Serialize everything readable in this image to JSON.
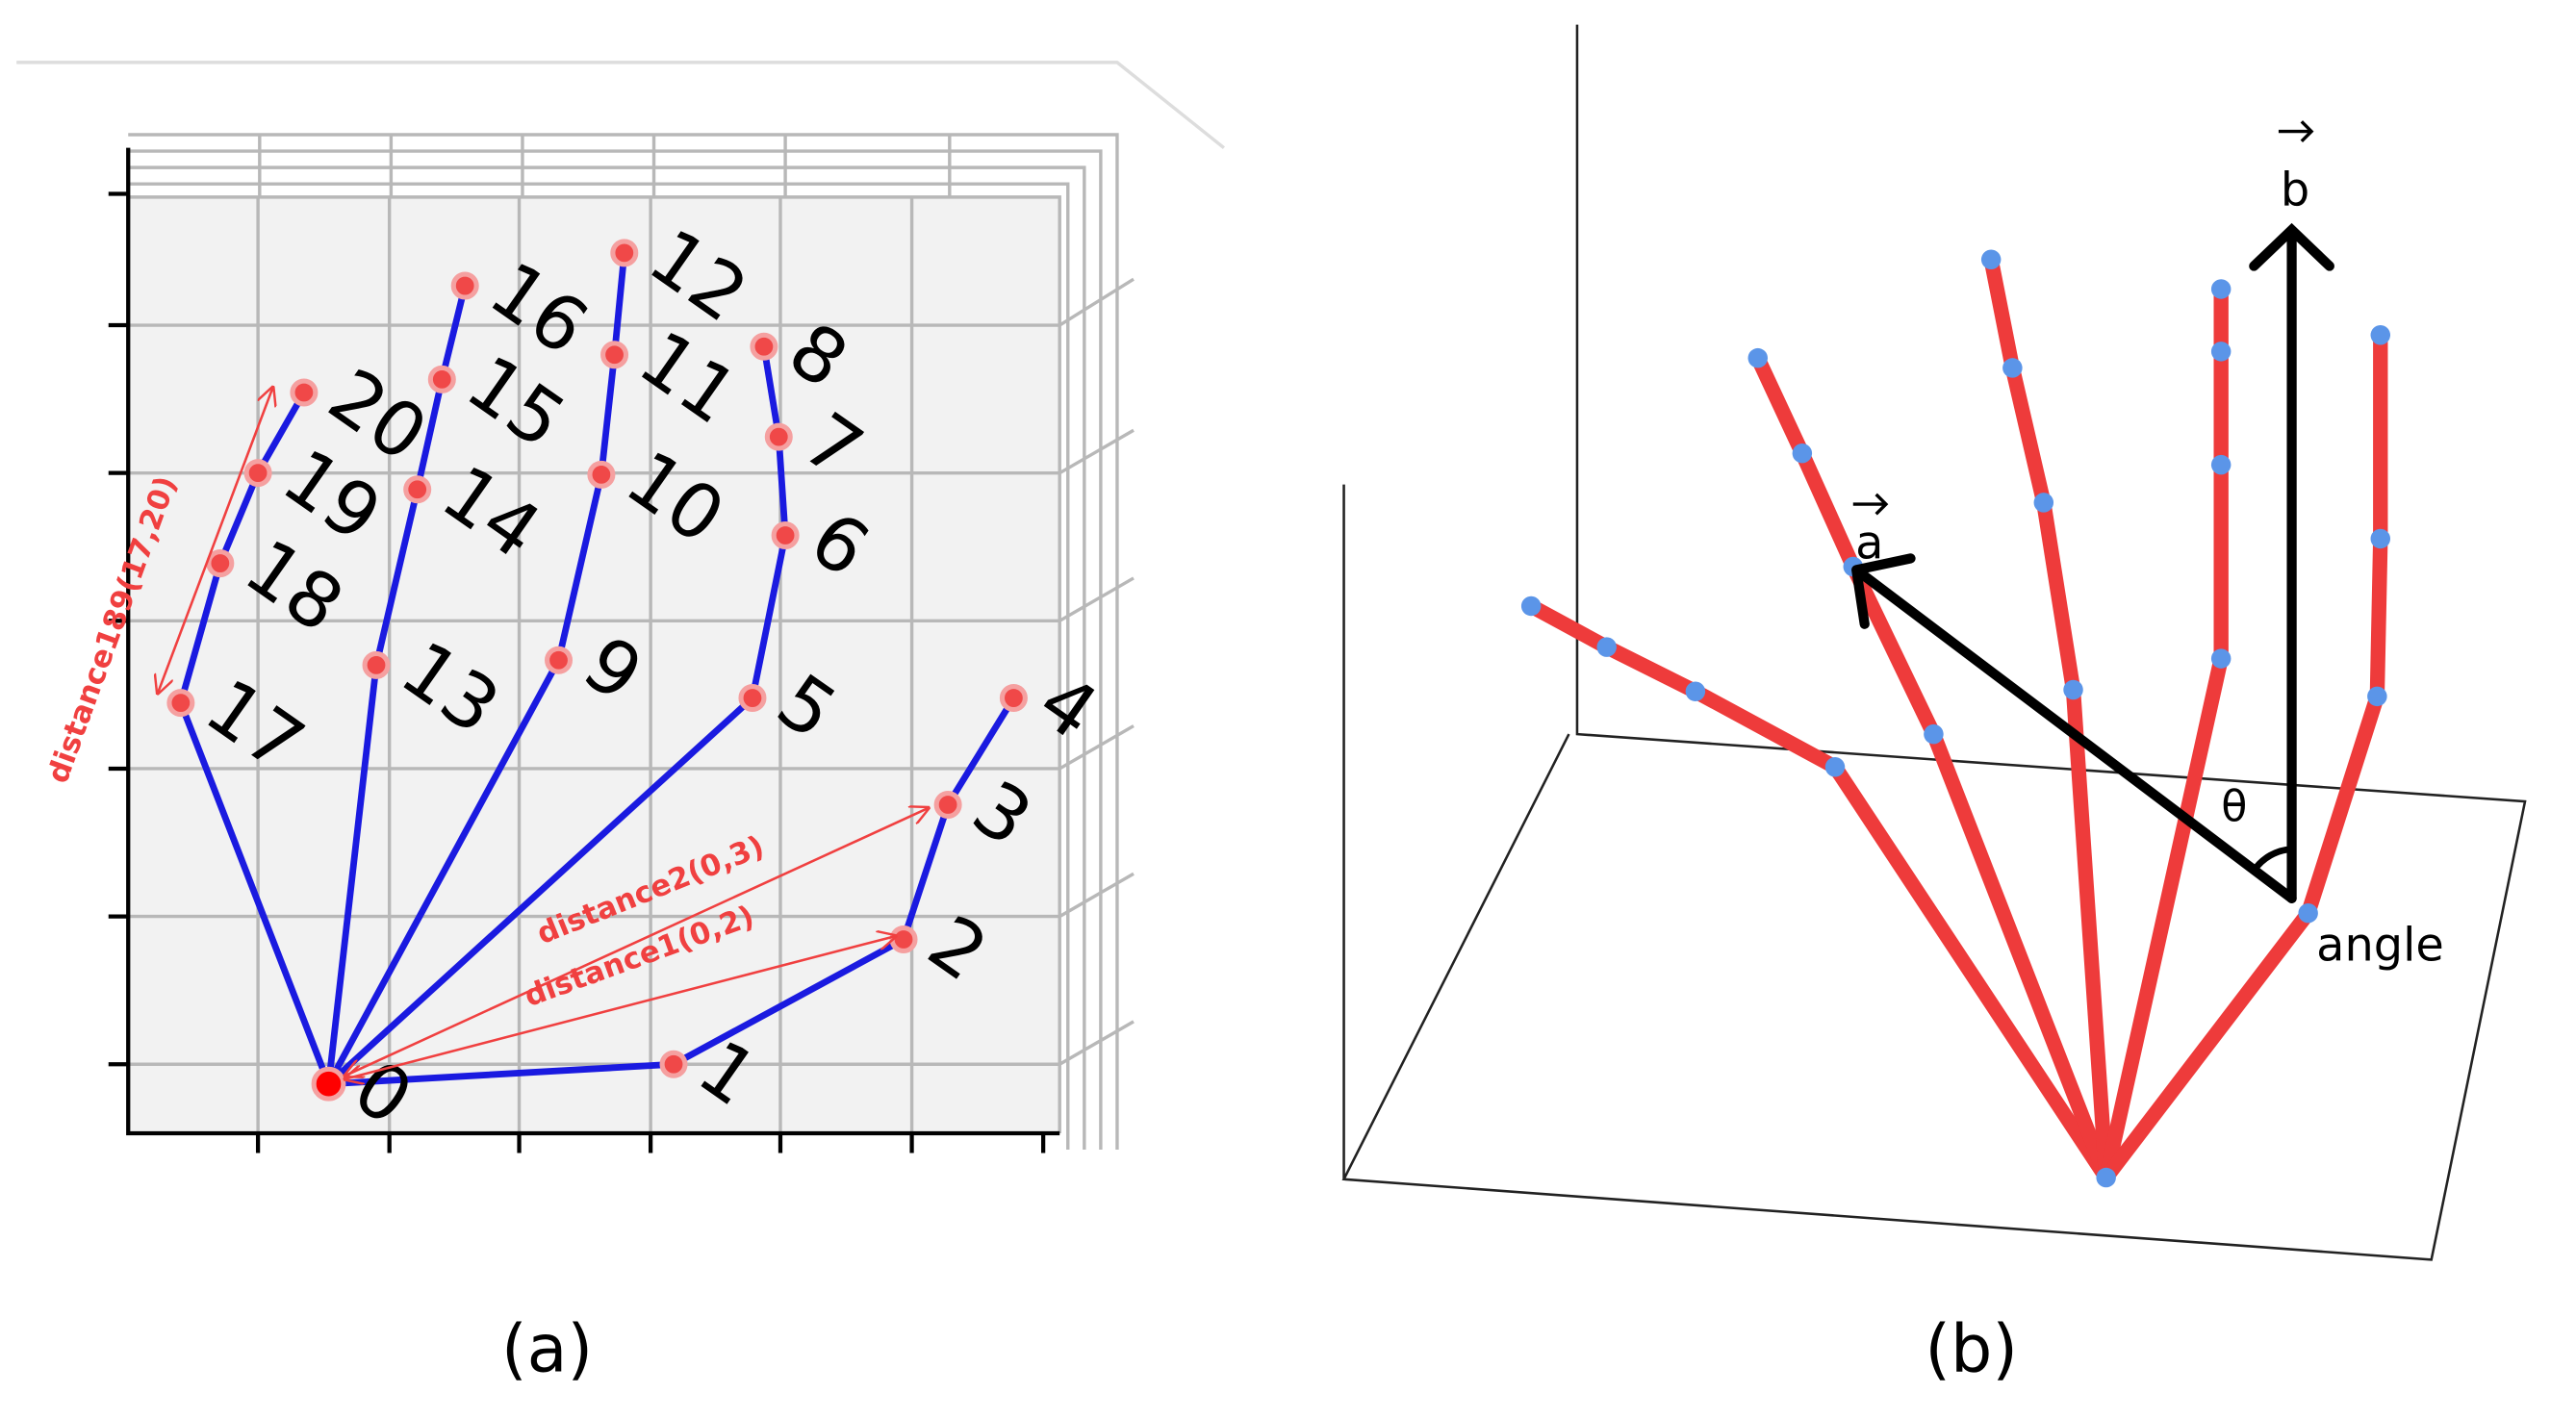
{
  "panel_a": {
    "landmarks": [
      "0",
      "1",
      "2",
      "3",
      "4",
      "5",
      "6",
      "7",
      "8",
      "9",
      "10",
      "11",
      "12",
      "13",
      "14",
      "15",
      "16",
      "17",
      "18",
      "19",
      "20"
    ],
    "distance_labels": [
      "distance1(0,2)",
      "distance2(0,3)",
      "distance189(17,20)"
    ],
    "caption": "(a)"
  },
  "panel_b": {
    "vector_labels": [
      "a",
      "b"
    ],
    "angle_symbol": "θ",
    "angle_label": "angle",
    "caption": "(b)"
  }
}
